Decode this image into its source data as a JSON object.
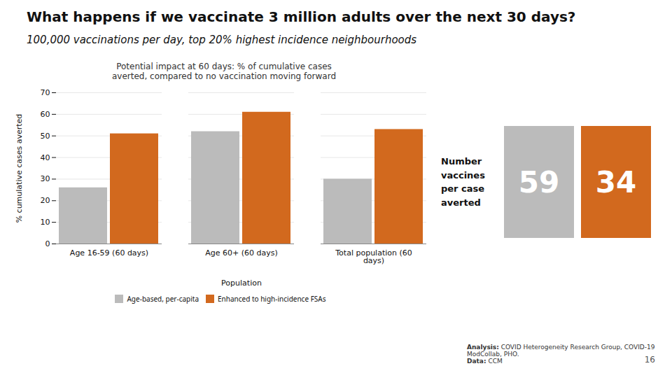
{
  "chart_data": {
    "type": "bar",
    "title": "What happens if we vaccinate 3 million adults over the next 30 days?",
    "subtitle": "100,000 vaccinations per day, top 20% highest incidence neighbourhoods",
    "chart_title": "Potential impact at 60 days: % of cumulative cases\naverted, compared to no vaccination moving forward",
    "categories": [
      "Age 16-59 (60 days)",
      "Age 60+ (60 days)",
      "Total population (60\ndays)"
    ],
    "series": [
      {
        "name": "Age-based, per-capita",
        "color": "#BBBBBB",
        "values": [
          26,
          52,
          30
        ],
        "vaccines_per_case_averted": 59
      },
      {
        "name": "Enhanced to high-incidence FSAs",
        "color": "#D2691E",
        "values": [
          51,
          61,
          53
        ],
        "vaccines_per_case_averted": 34
      }
    ],
    "xlabel": "Population",
    "ylabel": "% cumulative cases averted",
    "ylim": [
      0,
      70
    ],
    "yticks": [
      0,
      10,
      20,
      30,
      40,
      50,
      60,
      70
    ],
    "grid": true,
    "legend": "bottom",
    "box_label": "Number\nvaccines\nper case\naverted",
    "box_text_color": "#FFFFFF",
    "footnote": [
      "Analysis: COVID Heterogeneity Research Group, COVID-19 ModCollab, PHO.",
      "Data: CCM"
    ],
    "page_number": "16"
  }
}
